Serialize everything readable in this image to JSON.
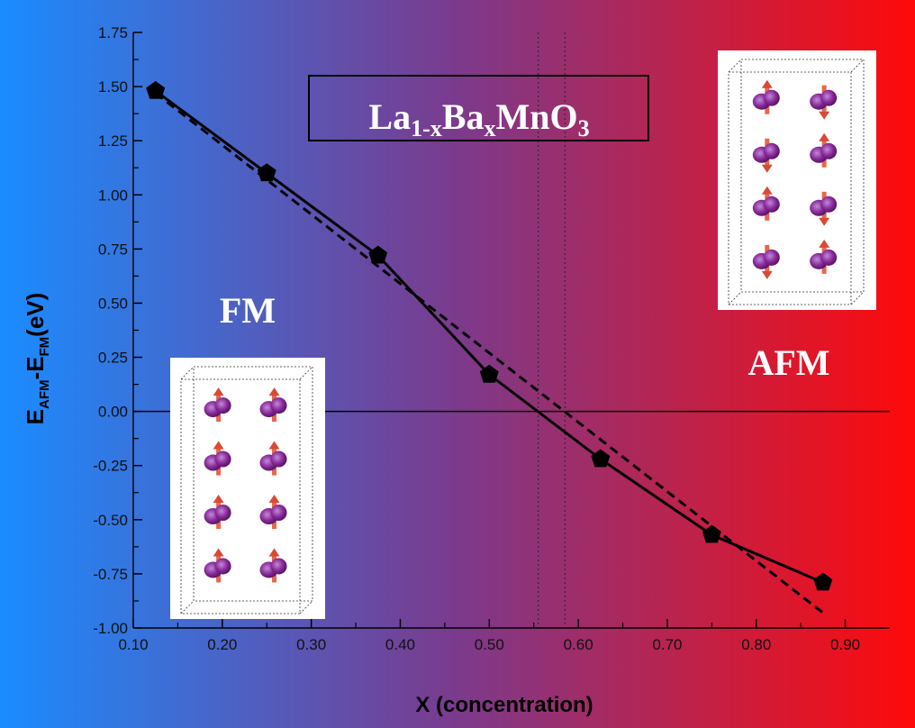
{
  "chart_data": {
    "type": "line",
    "title": "La1-xBaxMnO3",
    "title_parts": {
      "base1": "La",
      "sub1": "1-x",
      "base2": "Ba",
      "sub2": "x",
      "base3": "MnO",
      "sub3": "3"
    },
    "xlabel": "X (concentration)",
    "ylabel_parts": {
      "e1": "E",
      "s1": "AFM",
      "mid": "-E",
      "s2": "FM",
      "unit": "(eV)"
    },
    "xlim": [
      0.1,
      0.95
    ],
    "ylim": [
      -1.0,
      1.75
    ],
    "xticks": [
      "0.10",
      "0.20",
      "0.30",
      "0.40",
      "0.50",
      "0.60",
      "0.70",
      "0.80",
      "0.90"
    ],
    "yticks": [
      "1.75",
      "1.50",
      "1.25",
      "1.00",
      "0.75",
      "0.50",
      "0.25",
      "0.00",
      "-0.25",
      "-0.50",
      "-0.75",
      "-1.00"
    ],
    "grid": false,
    "series": [
      {
        "style": "solid-with-pentagon-markers",
        "x": [
          0.125,
          0.25,
          0.375,
          0.5,
          0.625,
          0.75,
          0.875
        ],
        "y": [
          1.48,
          1.1,
          0.72,
          0.17,
          -0.22,
          -0.57,
          -0.79
        ]
      },
      {
        "style": "dashed-linear-fit",
        "x": [
          0.125,
          0.875
        ],
        "y": [
          1.47,
          -0.93
        ]
      }
    ],
    "reference_lines": {
      "y_zero": 0.0,
      "x_dotted": [
        0.555,
        0.585
      ]
    },
    "annotations": {
      "left_phase": "FM",
      "right_phase": "AFM"
    },
    "background_gradient": {
      "left": "#1a8cff",
      "middle": "#7b3a8c",
      "right": "#ff0a0a"
    },
    "insets": [
      {
        "phase": "FM",
        "spins": "parallel"
      },
      {
        "phase": "AFM",
        "spins": "antiparallel"
      }
    ]
  }
}
